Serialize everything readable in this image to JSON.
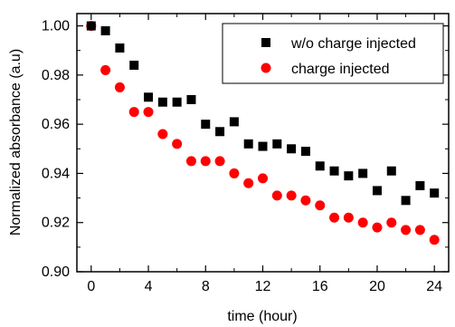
{
  "chart_data": {
    "type": "scatter",
    "xlabel": "time (hour)",
    "ylabel": "Normalized absorbance (a.u)",
    "xlim": [
      -1,
      25
    ],
    "ylim": [
      0.9,
      1.005
    ],
    "xticks": [
      "0",
      "4",
      "8",
      "12",
      "16",
      "20",
      "24"
    ],
    "yticks": [
      "0.90",
      "0.92",
      "0.94",
      "0.96",
      "0.98",
      "1.00"
    ],
    "legend_position": "top-right",
    "series": [
      {
        "name": "w/o charge injected",
        "marker": "square",
        "color": "#000000",
        "x": [
          0,
          1,
          2,
          3,
          4,
          5,
          6,
          7,
          8,
          9,
          10,
          11,
          12,
          13,
          14,
          15,
          16,
          17,
          18,
          19,
          20,
          21,
          22,
          23,
          24
        ],
        "y": [
          1.0,
          0.998,
          0.991,
          0.984,
          0.971,
          0.969,
          0.969,
          0.97,
          0.96,
          0.957,
          0.961,
          0.952,
          0.951,
          0.952,
          0.95,
          0.949,
          0.943,
          0.941,
          0.939,
          0.94,
          0.933,
          0.941,
          0.929,
          0.935,
          0.932
        ]
      },
      {
        "name": "charge injected",
        "marker": "circle",
        "color": "#ff0000",
        "x": [
          0,
          1,
          2,
          3,
          4,
          5,
          6,
          7,
          8,
          9,
          10,
          11,
          12,
          13,
          14,
          15,
          16,
          17,
          18,
          19,
          20,
          21,
          22,
          23,
          24
        ],
        "y": [
          1.0,
          0.982,
          0.975,
          0.965,
          0.965,
          0.956,
          0.952,
          0.945,
          0.945,
          0.945,
          0.94,
          0.936,
          0.938,
          0.931,
          0.931,
          0.929,
          0.927,
          0.922,
          0.922,
          0.92,
          0.918,
          0.92,
          0.917,
          0.917,
          0.913
        ]
      }
    ]
  }
}
